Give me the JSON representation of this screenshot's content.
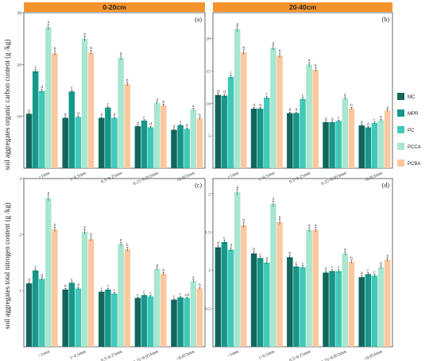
{
  "colors": {
    "MC": "#11665d",
    "MPR": "#169789",
    "PC": "#40c9b8",
    "PCCA": "#a8e6cf",
    "PCBA": "#fbc8a0",
    "strip": "#f5942c"
  },
  "strips": [
    "0-20cm",
    "20-40cm"
  ],
  "legend": [
    "MC",
    "MPR",
    "PC",
    "PCCA",
    "PCBA"
  ],
  "y_labels": [
    "soil aggregates organic carbon content (g /kg)",
    "soil aggregates total nitrogen content (g /kg)"
  ],
  "chart_data": [
    {
      "type": "bar",
      "panel_label": "(a)",
      "ylim": [
        0,
        30
      ],
      "yticks": [
        10,
        20,
        30
      ],
      "categories": [
        ">1mm",
        "1~0.5mm",
        "0.5~0.25mm",
        "0.25~0.053mm",
        "<0.053mm"
      ],
      "series": [
        {
          "name": "MC",
          "values": [
            10.5,
            9.7,
            9.7,
            8.1,
            7.4
          ],
          "labels": [
            "e",
            "d",
            "d",
            "d",
            "d"
          ]
        },
        {
          "name": "MPR",
          "values": [
            18.7,
            14.8,
            11.7,
            9.2,
            8.3
          ],
          "labels": [
            "c",
            "c",
            "c",
            "c",
            "c"
          ]
        },
        {
          "name": "PC",
          "values": [
            14.9,
            9.9,
            9.7,
            7.9,
            7.6
          ],
          "labels": [
            "d",
            "d",
            "d",
            "d",
            "d"
          ]
        },
        {
          "name": "PCCA",
          "values": [
            27.2,
            25.0,
            21.3,
            12.6,
            11.3
          ],
          "labels": [
            "a",
            "a",
            "a",
            "a",
            "a"
          ]
        },
        {
          "name": "PCBA",
          "values": [
            22.2,
            22.3,
            16.2,
            12.1,
            9.6
          ],
          "labels": [
            "b",
            "b",
            "b",
            "b",
            "b"
          ]
        }
      ]
    },
    {
      "type": "bar",
      "panel_label": "(b)",
      "ylim": [
        0,
        24
      ],
      "yticks": [
        5,
        10,
        15,
        20
      ],
      "categories": [
        ">1mm",
        "1~0.5mm",
        "0.5~0.25mm",
        "0.25~0.053mm",
        "<0.053mm"
      ],
      "series": [
        {
          "name": "MC",
          "values": [
            11.3,
            9.2,
            8.5,
            7.1,
            6.6
          ],
          "labels": [
            "d",
            "d",
            "d",
            "d",
            "d"
          ]
        },
        {
          "name": "MPR",
          "values": [
            11.2,
            9.2,
            8.5,
            7.1,
            6.3
          ],
          "labels": [
            "d",
            "d",
            "d",
            "d",
            "d"
          ]
        },
        {
          "name": "PC",
          "values": [
            14.1,
            10.9,
            10.7,
            7.3,
            7.0
          ],
          "labels": [
            "c",
            "c",
            "c",
            "c",
            "c"
          ]
        },
        {
          "name": "PCCA",
          "values": [
            21.5,
            18.6,
            16.0,
            10.8,
            7.4
          ],
          "labels": [
            "a",
            "a",
            "a",
            "a",
            "b"
          ]
        },
        {
          "name": "PCBA",
          "values": [
            17.9,
            17.4,
            15.2,
            9.2,
            8.9
          ],
          "labels": [
            "b",
            "b",
            "b",
            "b",
            "a"
          ]
        }
      ]
    },
    {
      "type": "bar",
      "panel_label": "(c)",
      "ylim": [
        0,
        3
      ],
      "yticks": [
        1,
        2,
        3
      ],
      "categories": [
        ">1mm",
        "1~0.5mm",
        "0.5~0.25mm",
        "0.25~0.053mm",
        "<0.053mm"
      ],
      "series": [
        {
          "name": "MC",
          "values": [
            1.13,
            1.02,
            0.98,
            0.87,
            0.84
          ],
          "labels": [
            "d",
            "d",
            "c",
            "c",
            "c"
          ]
        },
        {
          "name": "MPR",
          "values": [
            1.36,
            1.14,
            1.02,
            0.92,
            0.88
          ],
          "labels": [
            "c",
            "c",
            "c",
            "c",
            "c"
          ]
        },
        {
          "name": "PC",
          "values": [
            1.21,
            1.04,
            0.95,
            0.9,
            0.87
          ],
          "labels": [
            "d",
            "d",
            "c",
            "c",
            "cd"
          ]
        },
        {
          "name": "PCCA",
          "values": [
            2.65,
            2.05,
            1.83,
            1.39,
            1.17
          ],
          "labels": [
            "a",
            "a",
            "a",
            "a",
            "a"
          ]
        },
        {
          "name": "PCBA",
          "values": [
            2.09,
            1.92,
            1.74,
            1.3,
            1.04
          ],
          "labels": [
            "b",
            "b",
            "b",
            "b",
            "b"
          ]
        }
      ]
    },
    {
      "type": "bar",
      "panel_label": "(d)",
      "ylim": [
        0,
        2.2
      ],
      "yticks": [
        0.5,
        1.0,
        1.5,
        2.0
      ],
      "categories": [
        ">1mm",
        "1~0.5mm",
        "0.5~0.25mm",
        "0.25~0.053mm",
        "<0.053mm"
      ],
      "series": [
        {
          "name": "MC",
          "values": [
            1.3,
            1.22,
            1.17,
            0.97,
            0.91
          ],
          "labels": [
            "d",
            "b",
            "b",
            "d",
            "d"
          ]
        },
        {
          "name": "MPR",
          "values": [
            1.37,
            1.16,
            1.05,
            0.99,
            0.95
          ],
          "labels": [
            "c",
            "c",
            "c",
            "c",
            "c"
          ]
        },
        {
          "name": "PC",
          "values": [
            1.27,
            1.1,
            1.04,
            0.99,
            0.93
          ],
          "labels": [
            "d",
            "d",
            "c",
            "c",
            "c"
          ]
        },
        {
          "name": "PCCA",
          "values": [
            2.02,
            1.87,
            1.53,
            1.22,
            1.04
          ],
          "labels": [
            "a",
            "a",
            "a",
            "a",
            "b"
          ]
        },
        {
          "name": "PCBA",
          "values": [
            1.59,
            1.63,
            1.53,
            1.11,
            1.14
          ],
          "labels": [
            "b",
            "b",
            "a",
            "b",
            "a"
          ]
        }
      ]
    }
  ]
}
